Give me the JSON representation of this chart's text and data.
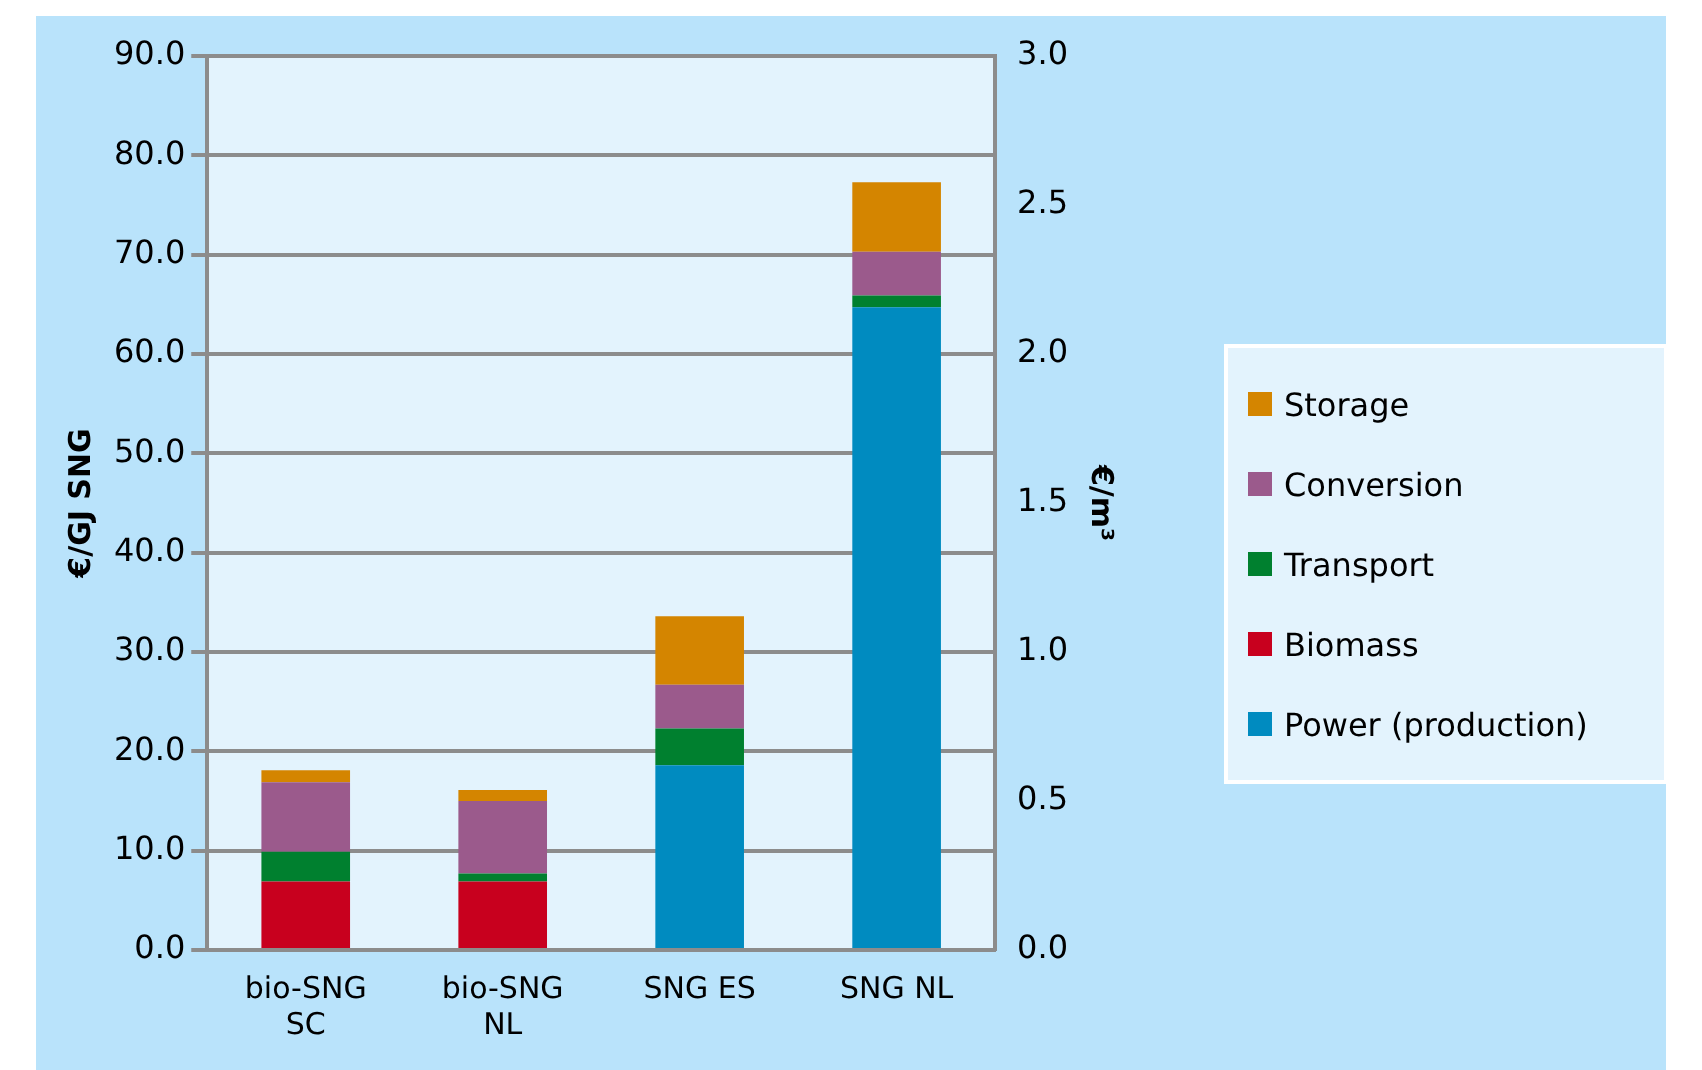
{
  "chart_data": {
    "type": "bar",
    "stacked": true,
    "categories": [
      "bio-SNG SC",
      "bio-SNG NL",
      "SNG ES",
      "SNG NL"
    ],
    "series": [
      {
        "name": "Power (production)",
        "color": "#008bc0",
        "values": [
          0,
          0,
          18.6,
          64.7
        ]
      },
      {
        "name": "Biomass",
        "color": "#c8001e",
        "values": [
          6.9,
          6.9,
          0,
          0
        ]
      },
      {
        "name": "Transport",
        "color": "#00802f",
        "values": [
          3.0,
          0.8,
          3.7,
          1.2
        ]
      },
      {
        "name": "Conversion",
        "color": "#9b5a8c",
        "values": [
          7.0,
          7.3,
          4.4,
          4.4
        ]
      },
      {
        "name": "Storage",
        "color": "#d48500",
        "values": [
          1.2,
          1.1,
          6.9,
          7.0
        ]
      }
    ],
    "ylabel": "€/GJ SNG",
    "y2label": "€/m³",
    "ylim": [
      0,
      90
    ],
    "yticks": [
      {
        "value": 0,
        "label": "0.0"
      },
      {
        "value": 10,
        "label": "10.0"
      },
      {
        "value": 20,
        "label": "20.0"
      },
      {
        "value": 30,
        "label": "30.0"
      },
      {
        "value": 40,
        "label": "40.0"
      },
      {
        "value": 50,
        "label": "50.0"
      },
      {
        "value": 60,
        "label": "60.0"
      },
      {
        "value": 70,
        "label": "70.0"
      },
      {
        "value": 80,
        "label": "80.0"
      },
      {
        "value": 90,
        "label": "90.0"
      }
    ],
    "y2lim": [
      0,
      3
    ],
    "y2ticks": [
      {
        "value": 0,
        "label": "0.0"
      },
      {
        "value": 0.5,
        "label": "0.5"
      },
      {
        "value": 1,
        "label": "1.0"
      },
      {
        "value": 1.5,
        "label": "1.5"
      },
      {
        "value": 2,
        "label": "2.0"
      },
      {
        "value": 2.5,
        "label": "2.5"
      },
      {
        "value": 3,
        "label": "3.0"
      }
    ],
    "grid": "y",
    "legend": "right"
  }
}
